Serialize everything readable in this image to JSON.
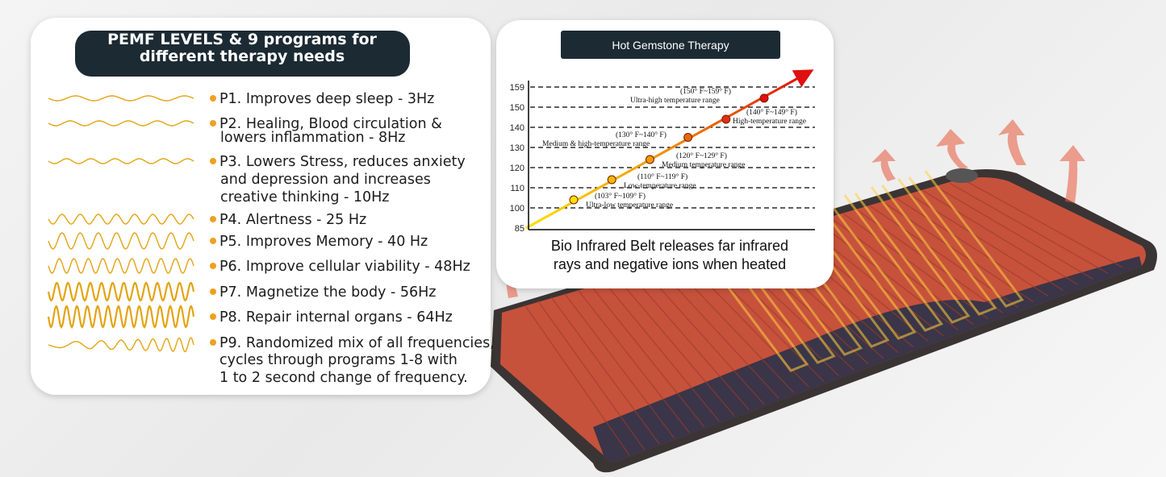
{
  "pemf_panel": {
    "title_lines": [
      "PEMF LEVELS & 9 programs for",
      "different therapy needs"
    ],
    "programs": [
      [
        "P1. Improves deep sleep - 3Hz"
      ],
      [
        "P2. Healing, Blood circulation &",
        "lowers inflammation - 8Hz"
      ],
      [
        "P3. Lowers Stress, reduces anxiety",
        "and depression and increases",
        "creative thinking - 10Hz"
      ],
      [
        "P4. Alertness - 25 Hz"
      ],
      [
        "P5. Improves Memory - 40 Hz"
      ],
      [
        "P6. Improve cellular viability - 48Hz"
      ],
      [
        "P7. Magnetize the body - 56Hz"
      ],
      [
        "P8. Repair internal organs - 64Hz"
      ],
      [
        "P9. Randomized mix of all frequencies,",
        "cycles through programs 1-8 with",
        "1 to 2 second change of frequency."
      ]
    ]
  },
  "therapy_chart": {
    "title": "Hot Gemstone Therapy",
    "yticks": [
      85,
      100,
      110,
      120,
      130,
      140,
      150,
      159
    ],
    "points": [
      {
        "value": 104,
        "temperature": "(103° F~109° F)",
        "range": "Ultra-low temperature range"
      },
      {
        "value": 114,
        "temperature": "(110° F~119° F)",
        "range": "Low-temperature range"
      },
      {
        "value": 124,
        "temperature": "(120° F~129° F)",
        "range": "Medium temperature range"
      },
      {
        "value": 135,
        "temperature": "(130° F~140° F)",
        "range": "Medium & high-temperature range"
      },
      {
        "value": 144,
        "temperature": "(140° F~149° F)",
        "range": "High-temperature range"
      },
      {
        "value": 154,
        "temperature": "(150° F~159° F)",
        "range": "Ultra-high temperature range"
      }
    ],
    "caption_lines": [
      "Bio Infrared Belt releases far infrared",
      "rays and negative ions when heated"
    ]
  }
}
